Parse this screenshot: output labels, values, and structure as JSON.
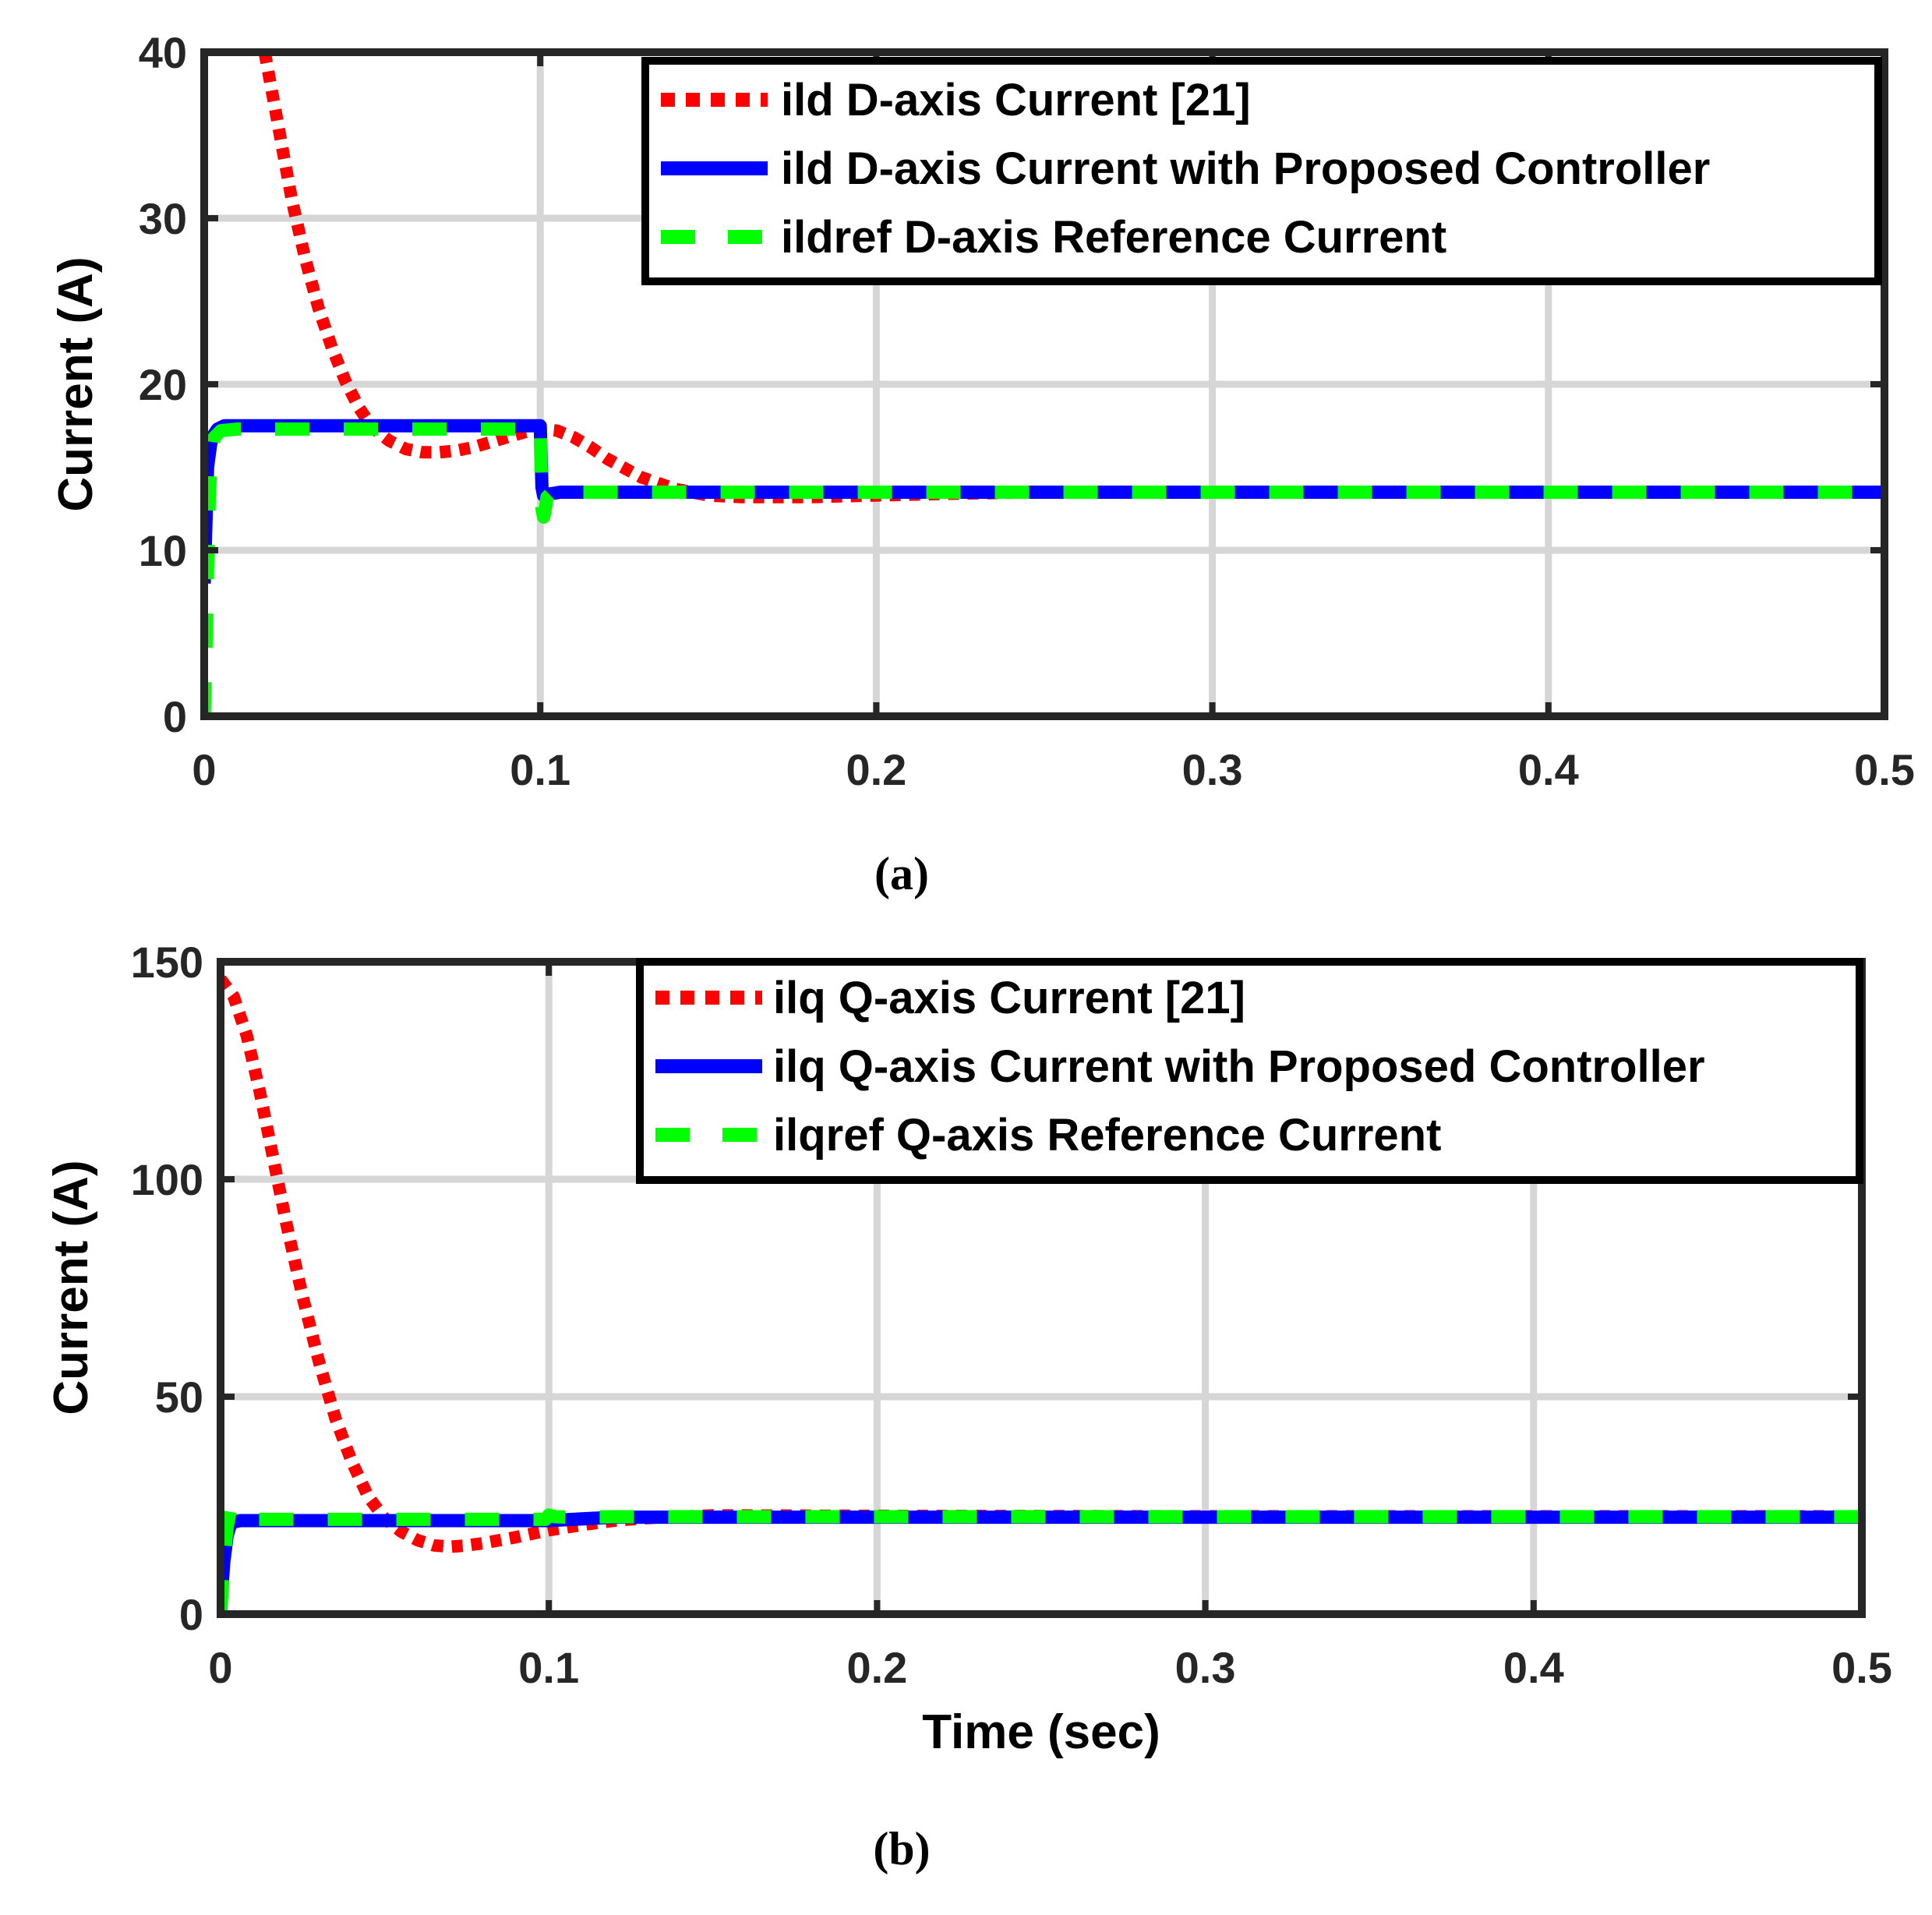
{
  "chart_data": [
    {
      "type": "line",
      "panel": "(a)",
      "title": "",
      "xlabel": "",
      "ylabel": "Current (A)",
      "xlim": [
        0,
        0.5
      ],
      "ylim": [
        0,
        40
      ],
      "xticks": [
        0,
        0.1,
        0.2,
        0.3,
        0.4,
        0.5
      ],
      "xtick_labels": [
        "0",
        "0.1",
        "0.2",
        "0.3",
        "0.4",
        "0.5"
      ],
      "yticks": [
        0,
        10,
        20,
        30,
        40
      ],
      "ytick_labels": [
        "0",
        "10",
        "20",
        "30",
        "40"
      ],
      "grid": true,
      "legend_position": "top-right",
      "series": [
        {
          "name": "ild D-axis Current [21]",
          "style": "dotted",
          "color": "#ff0000",
          "x": [
            0.018,
            0.022,
            0.026,
            0.03,
            0.034,
            0.038,
            0.042,
            0.046,
            0.05,
            0.055,
            0.06,
            0.065,
            0.07,
            0.075,
            0.08,
            0.085,
            0.09,
            0.095,
            0.1,
            0.105,
            0.11,
            0.115,
            0.12,
            0.13,
            0.14,
            0.15,
            0.16,
            0.18,
            0.2,
            0.22,
            0.25,
            0.3,
            0.5
          ],
          "y": [
            40,
            35.6,
            31.2,
            27.6,
            24.6,
            22.2,
            20.2,
            18.6,
            17.4,
            16.6,
            16.1,
            15.9,
            15.9,
            16.0,
            16.2,
            16.5,
            16.8,
            17.1,
            17.3,
            17.2,
            16.8,
            16.2,
            15.5,
            14.4,
            13.7,
            13.3,
            13.2,
            13.2,
            13.3,
            13.4,
            13.5,
            13.5,
            13.5
          ]
        },
        {
          "name": "ild D-axis Current with Proposed Controller",
          "style": "solid",
          "color": "#0000ff",
          "x": [
            0,
            0.001,
            0.002,
            0.003,
            0.004,
            0.006,
            0.01,
            0.05,
            0.099,
            0.1,
            0.1005,
            0.101,
            0.103,
            0.106,
            0.12,
            0.5
          ],
          "y": [
            8,
            15,
            16.5,
            17,
            17.3,
            17.5,
            17.5,
            17.5,
            17.5,
            17.5,
            13.8,
            13.3,
            13.4,
            13.5,
            13.5,
            13.5
          ]
        },
        {
          "name": "ildref D-axis Reference Current",
          "style": "dashed",
          "color": "#00ff00",
          "x": [
            0,
            0.0005,
            0.001,
            0.0015,
            0.002,
            0.003,
            0.005,
            0.01,
            0.05,
            0.099,
            0.1,
            0.1005,
            0.101,
            0.1015,
            0.102,
            0.103,
            0.105,
            0.12,
            0.5
          ],
          "y": [
            0,
            4,
            9,
            13,
            15.5,
            16.8,
            17.2,
            17.3,
            17.3,
            17.3,
            17.3,
            12.5,
            12,
            12.5,
            13.2,
            13.4,
            13.5,
            13.5,
            13.5
          ]
        }
      ],
      "caption": "(a)"
    },
    {
      "type": "line",
      "panel": "(b)",
      "title": "",
      "xlabel": "Time (sec)",
      "ylabel": "Current (A)",
      "xlim": [
        0,
        0.5
      ],
      "ylim": [
        0,
        150
      ],
      "xticks": [
        0,
        0.1,
        0.2,
        0.3,
        0.4,
        0.5
      ],
      "xtick_labels": [
        "0",
        "0.1",
        "0.2",
        "0.3",
        "0.4",
        "0.5"
      ],
      "yticks": [
        0,
        50,
        100,
        150
      ],
      "ytick_labels": [
        "0",
        "50",
        "100",
        "150"
      ],
      "grid": true,
      "legend_position": "top-right",
      "series": [
        {
          "name": "ilq Q-axis Current [21]",
          "style": "dotted",
          "color": "#ff0000",
          "x": [
            0,
            0.004,
            0.008,
            0.012,
            0.016,
            0.02,
            0.025,
            0.03,
            0.035,
            0.04,
            0.045,
            0.05,
            0.055,
            0.06,
            0.065,
            0.07,
            0.075,
            0.08,
            0.09,
            0.1,
            0.11,
            0.12,
            0.13,
            0.15,
            0.2,
            0.3,
            0.5
          ],
          "y": [
            146,
            142,
            133,
            120,
            105,
            90,
            73,
            58,
            45,
            35,
            27,
            22,
            19,
            17,
            15.8,
            15.5,
            15.8,
            16.3,
            17.7,
            19.3,
            20.5,
            21.5,
            22.1,
            22.7,
            22.6,
            22.5,
            22.5
          ]
        },
        {
          "name": "ilq Q-axis Current with Proposed Controller",
          "style": "solid",
          "color": "#0000ff",
          "x": [
            0,
            0.001,
            0.002,
            0.003,
            0.004,
            0.006,
            0.01,
            0.1,
            0.12,
            0.5
          ],
          "y": [
            2,
            12,
            18,
            20.5,
            21.2,
            21.5,
            21.5,
            21.5,
            22.3,
            22.3
          ]
        },
        {
          "name": "ilqref Q-axis Reference Current",
          "style": "dashed",
          "color": "#00ff00",
          "x": [
            0,
            0.001,
            0.002,
            0.003,
            0.004,
            0.006,
            0.01,
            0.099,
            0.1,
            0.102,
            0.106,
            0.12,
            0.5
          ],
          "y": [
            0,
            12,
            20,
            24,
            23,
            22,
            21.8,
            21.8,
            22.8,
            22.4,
            22.3,
            22.4,
            22.4
          ]
        }
      ],
      "caption": "(b)"
    }
  ]
}
